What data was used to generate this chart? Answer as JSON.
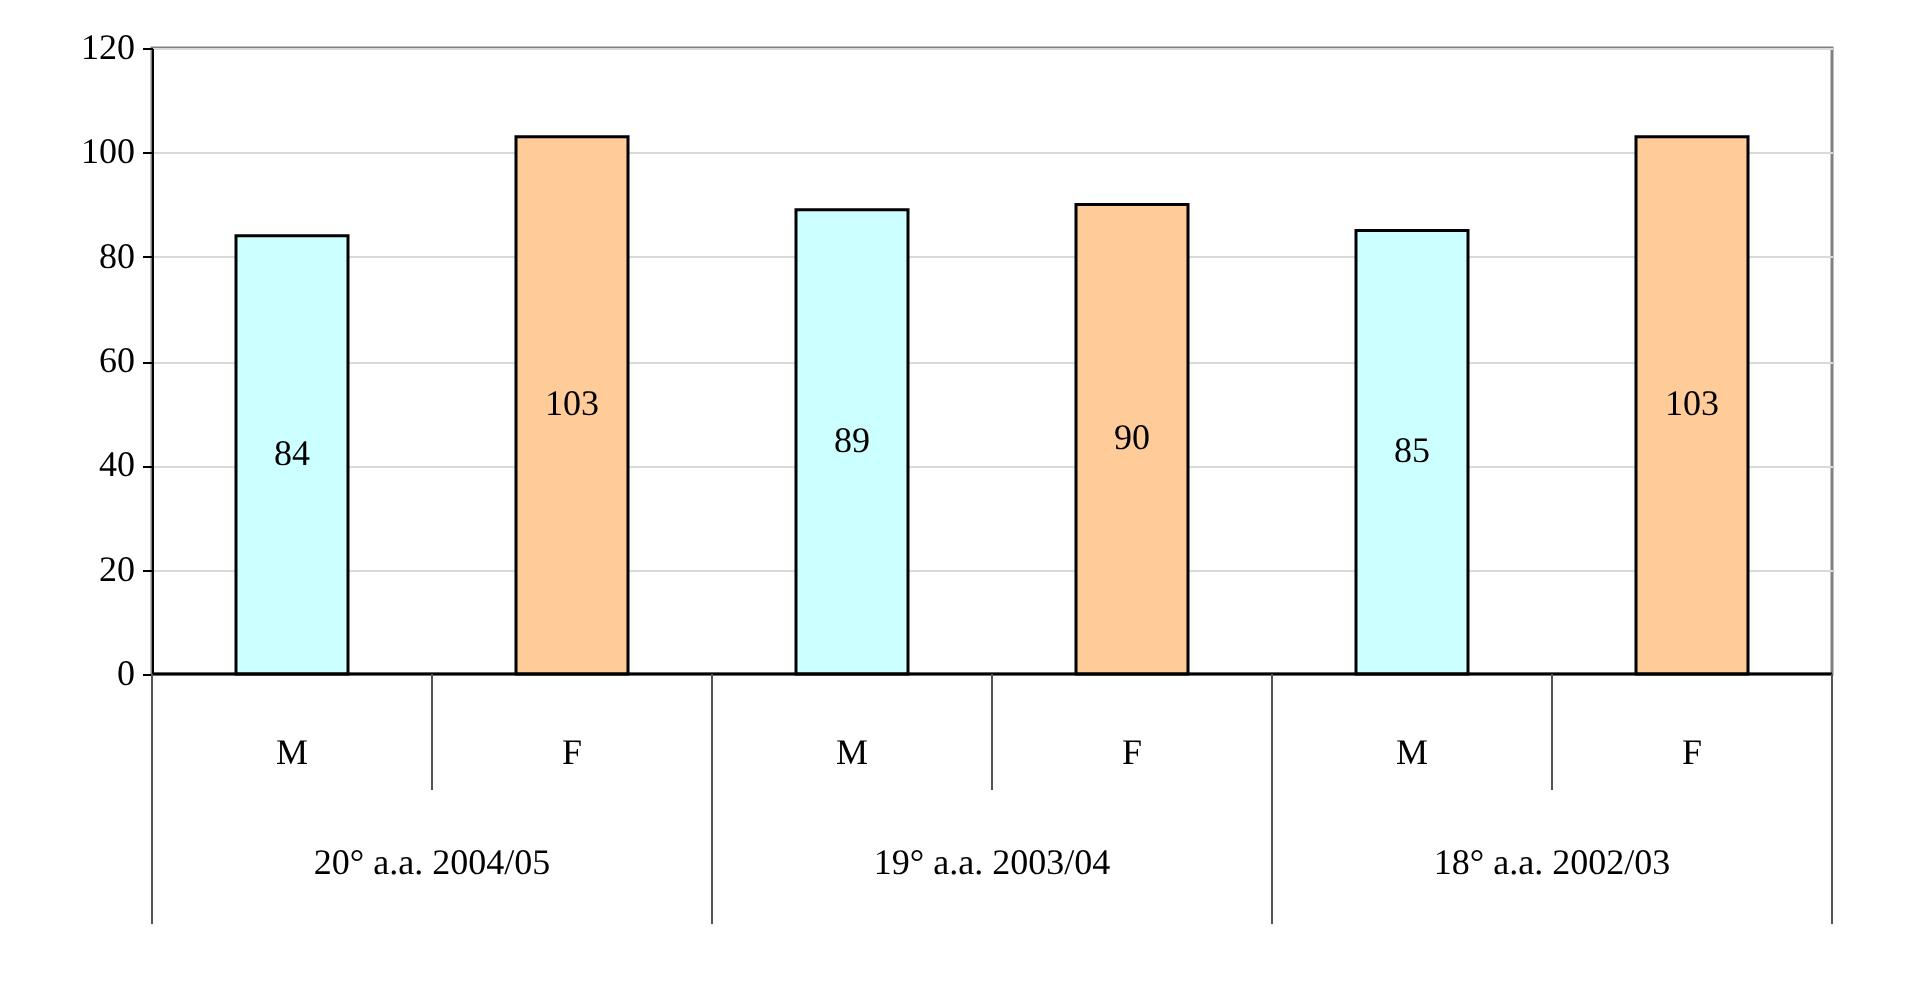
{
  "chart_data": {
    "type": "bar",
    "categories": [
      "M",
      "F",
      "M",
      "F",
      "M",
      "F"
    ],
    "values": [
      84,
      103,
      89,
      90,
      85,
      103
    ],
    "colors": [
      "#ccffff",
      "#ffcc99",
      "#ccffff",
      "#ffcc99",
      "#ccffff",
      "#ffcc99"
    ],
    "annotations": [
      "20° a.a. 2004/05",
      "19° a.a. 2003/04",
      "18° a.a. 2002/03"
    ],
    "ylim": [
      0,
      120
    ],
    "yticks": [
      0,
      20,
      40,
      60,
      80,
      100,
      120
    ],
    "grid": "y",
    "data_labels": true
  }
}
